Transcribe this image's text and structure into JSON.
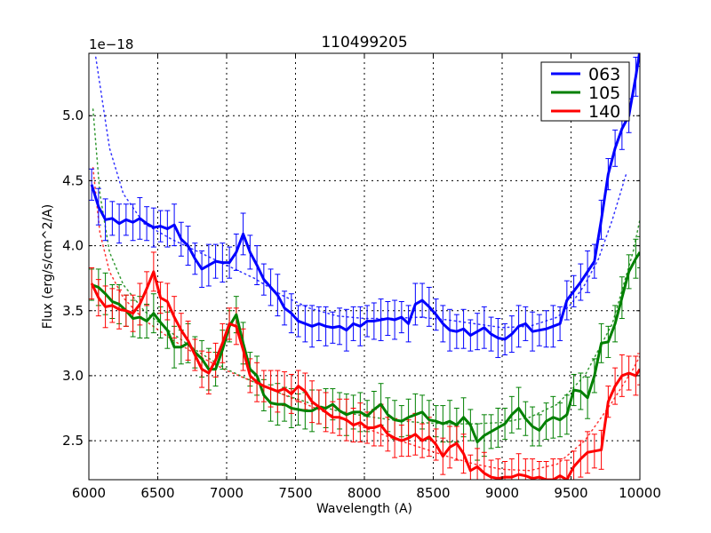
{
  "chart_data": {
    "type": "line",
    "title": "110499205",
    "xlabel": "Wavelength (A)",
    "ylabel": "Flux (erg/s/cm^2/A)",
    "y_offset_text": "1e−18",
    "xlim": [
      6000,
      10000
    ],
    "ylim": [
      2.2,
      5.48
    ],
    "xticks": [
      "6000",
      "6500",
      "7000",
      "7500",
      "8000",
      "8500",
      "9000",
      "9500",
      "10000"
    ],
    "yticks": [
      "2.5",
      "3.0",
      "3.5",
      "4.0",
      "4.5",
      "5.0"
    ],
    "grid": true,
    "legend_position": "upper right",
    "x": [
      6020,
      6070,
      6120,
      6170,
      6220,
      6270,
      6320,
      6370,
      6420,
      6470,
      6520,
      6570,
      6620,
      6670,
      6720,
      6770,
      6820,
      6870,
      6920,
      6970,
      7020,
      7070,
      7120,
      7170,
      7220,
      7270,
      7320,
      7370,
      7420,
      7470,
      7520,
      7570,
      7620,
      7670,
      7720,
      7770,
      7820,
      7870,
      7920,
      7970,
      8020,
      8070,
      8120,
      8170,
      8220,
      8270,
      8320,
      8370,
      8420,
      8470,
      8520,
      8570,
      8620,
      8670,
      8720,
      8770,
      8820,
      8870,
      8920,
      8970,
      9020,
      9070,
      9120,
      9170,
      9220,
      9270,
      9320,
      9370,
      9420,
      9470,
      9520,
      9570,
      9620,
      9670,
      9720,
      9770,
      9820,
      9870,
      9920,
      9970,
      10000
    ],
    "series": [
      {
        "name": "063",
        "color": "#0000ff",
        "values": [
          4.47,
          4.3,
          4.2,
          4.21,
          4.17,
          4.2,
          4.18,
          4.21,
          4.17,
          4.14,
          4.15,
          4.13,
          4.16,
          4.05,
          4.0,
          3.9,
          3.82,
          3.85,
          3.88,
          3.87,
          3.87,
          3.95,
          4.09,
          3.95,
          3.85,
          3.74,
          3.68,
          3.62,
          3.52,
          3.48,
          3.42,
          3.4,
          3.38,
          3.4,
          3.38,
          3.37,
          3.38,
          3.35,
          3.4,
          3.38,
          3.42,
          3.42,
          3.43,
          3.44,
          3.43,
          3.45,
          3.4,
          3.55,
          3.58,
          3.53,
          3.47,
          3.4,
          3.35,
          3.34,
          3.36,
          3.31,
          3.34,
          3.37,
          3.32,
          3.29,
          3.28,
          3.32,
          3.38,
          3.4,
          3.34,
          3.35,
          3.36,
          3.38,
          3.4,
          3.58,
          3.65,
          3.72,
          3.8,
          3.88,
          4.2,
          4.55,
          4.75,
          4.9,
          5.0,
          5.3,
          5.5
        ]
      },
      {
        "name": "105",
        "color": "#008000",
        "values": [
          3.7,
          3.68,
          3.63,
          3.57,
          3.55,
          3.5,
          3.44,
          3.45,
          3.42,
          3.48,
          3.41,
          3.35,
          3.22,
          3.22,
          3.25,
          3.18,
          3.13,
          3.05,
          3.05,
          3.2,
          3.38,
          3.47,
          3.25,
          3.05,
          3.0,
          2.85,
          2.79,
          2.78,
          2.78,
          2.75,
          2.74,
          2.73,
          2.73,
          2.76,
          2.75,
          2.78,
          2.73,
          2.7,
          2.72,
          2.72,
          2.69,
          2.74,
          2.78,
          2.7,
          2.66,
          2.65,
          2.68,
          2.7,
          2.72,
          2.66,
          2.65,
          2.63,
          2.65,
          2.62,
          2.68,
          2.62,
          2.49,
          2.54,
          2.57,
          2.6,
          2.63,
          2.7,
          2.75,
          2.67,
          2.61,
          2.58,
          2.65,
          2.68,
          2.66,
          2.7,
          2.89,
          2.88,
          2.83,
          3.0,
          3.25,
          3.26,
          3.4,
          3.6,
          3.8,
          3.9,
          3.95
        ]
      },
      {
        "name": "140",
        "color": "#ff0000",
        "values": [
          3.71,
          3.6,
          3.53,
          3.54,
          3.51,
          3.5,
          3.48,
          3.55,
          3.67,
          3.8,
          3.6,
          3.57,
          3.45,
          3.35,
          3.27,
          3.16,
          3.05,
          3.02,
          3.12,
          3.25,
          3.4,
          3.38,
          3.2,
          3.0,
          2.95,
          2.92,
          2.9,
          2.88,
          2.9,
          2.86,
          2.92,
          2.88,
          2.8,
          2.76,
          2.72,
          2.68,
          2.68,
          2.66,
          2.62,
          2.64,
          2.6,
          2.6,
          2.62,
          2.55,
          2.52,
          2.5,
          2.52,
          2.55,
          2.5,
          2.53,
          2.47,
          2.38,
          2.45,
          2.48,
          2.4,
          2.27,
          2.3,
          2.25,
          2.22,
          2.21,
          2.22,
          2.22,
          2.24,
          2.23,
          2.21,
          2.22,
          2.2,
          2.2,
          2.23,
          2.2,
          2.3,
          2.36,
          2.41,
          2.42,
          2.43,
          2.8,
          2.92,
          3.0,
          3.02,
          3.0,
          3.05
        ]
      }
    ],
    "fit_curves": [
      {
        "name": "063 fit",
        "color": "#0000ff",
        "style": "dotted",
        "x": [
          6050,
          6150,
          6250,
          6400,
          6600,
          6800,
          7000,
          7200,
          7400,
          7600,
          7800,
          8000,
          8200,
          8400,
          8600,
          8800,
          9000,
          9200,
          9400,
          9500,
          9600,
          9700,
          9800,
          9900
        ],
        "values": [
          5.45,
          4.75,
          4.4,
          4.17,
          4.05,
          3.95,
          3.85,
          3.75,
          3.62,
          3.52,
          3.46,
          3.44,
          3.44,
          3.45,
          3.43,
          3.4,
          3.37,
          3.38,
          3.45,
          3.55,
          3.7,
          3.9,
          4.2,
          4.55
        ]
      },
      {
        "name": "105 fit",
        "color": "#008000",
        "style": "dotted",
        "x": [
          6030,
          6080,
          6150,
          6250,
          6400,
          6600,
          6800,
          7000,
          7200,
          7400,
          7600,
          7800,
          8000,
          8200,
          8400,
          8600,
          8800,
          9000,
          9200,
          9400,
          9600,
          9800,
          9950,
          10000
        ],
        "values": [
          5.05,
          4.4,
          3.95,
          3.7,
          3.5,
          3.33,
          3.18,
          3.05,
          2.95,
          2.86,
          2.79,
          2.73,
          2.69,
          2.66,
          2.64,
          2.63,
          2.63,
          2.64,
          2.68,
          2.78,
          3.0,
          3.4,
          3.95,
          4.2
        ]
      },
      {
        "name": "140 fit",
        "color": "#ff0000",
        "style": "dotted",
        "x": [
          6030,
          6080,
          6150,
          6250,
          6400,
          6600,
          6800,
          7000,
          7200,
          7400,
          7600,
          7800,
          8000,
          8200,
          8400,
          8600,
          8800,
          9000,
          9200,
          9400,
          9600,
          9800,
          9950,
          10000
        ],
        "values": [
          4.6,
          4.1,
          3.8,
          3.6,
          3.43,
          3.28,
          3.15,
          3.04,
          2.95,
          2.86,
          2.77,
          2.68,
          2.6,
          2.52,
          2.45,
          2.38,
          2.32,
          2.28,
          2.27,
          2.32,
          2.5,
          2.8,
          3.05,
          3.15
        ]
      }
    ]
  }
}
